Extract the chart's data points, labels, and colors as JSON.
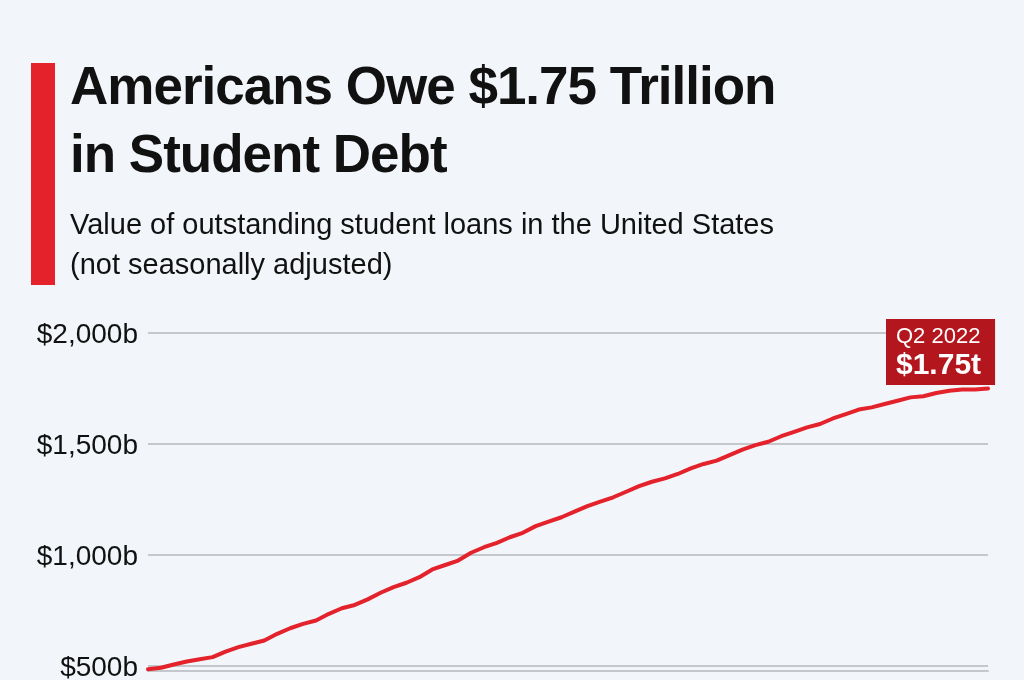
{
  "chart_data": {
    "type": "line",
    "title": "Americans Owe $1.75 Trillion in Student Debt",
    "subtitle": "Value of outstanding student loans in the United States (not seasonally adjusted)",
    "categories": [
      null,
      null,
      null,
      null,
      null,
      null,
      null,
      null,
      null,
      null,
      null,
      null,
      null,
      null,
      null,
      null,
      null,
      null,
      null,
      null,
      null,
      null,
      null,
      null,
      null,
      null,
      null,
      null,
      null,
      null,
      null,
      null,
      null,
      null,
      null,
      null,
      null,
      null,
      null,
      null,
      null,
      null,
      null,
      null,
      null,
      null,
      null,
      null,
      null,
      null,
      null,
      null,
      null,
      null,
      null,
      null,
      null,
      null,
      null,
      null,
      null,
      null,
      null,
      null,
      null,
      null
    ],
    "series": [
      {
        "color": "#e3222b",
        "values": [
          485,
          492,
          507,
          520,
          530,
          540,
          565,
          585,
          600,
          615,
          645,
          670,
          690,
          705,
          735,
          760,
          775,
          800,
          830,
          855,
          875,
          900,
          935,
          955,
          975,
          1010,
          1035,
          1055,
          1080,
          1100,
          1130,
          1150,
          1170,
          1195,
          1220,
          1240,
          1260,
          1285,
          1310,
          1330,
          1345,
          1365,
          1390,
          1410,
          1425,
          1450,
          1475,
          1495,
          1510,
          1535,
          1555,
          1575,
          1590,
          1615,
          1635,
          1655,
          1665,
          1680,
          1695,
          1710,
          1715,
          1730,
          1740,
          1745,
          1745,
          1750
        ]
      }
    ],
    "ylim": [
      480,
      2000
    ],
    "yticks": [
      {
        "value": 500,
        "label": "$500b"
      },
      {
        "value": 1000,
        "label": "$1,000b"
      },
      {
        "value": 1500,
        "label": "$1,500b"
      },
      {
        "value": 2000,
        "label": "$2,000b"
      }
    ],
    "grid": "y",
    "marker": "none",
    "line_style": "solid",
    "tick_labels": "y",
    "annotations": [
      {
        "text": "Q2 2022\n$1.75t",
        "y": 1750
      }
    ]
  }
}
